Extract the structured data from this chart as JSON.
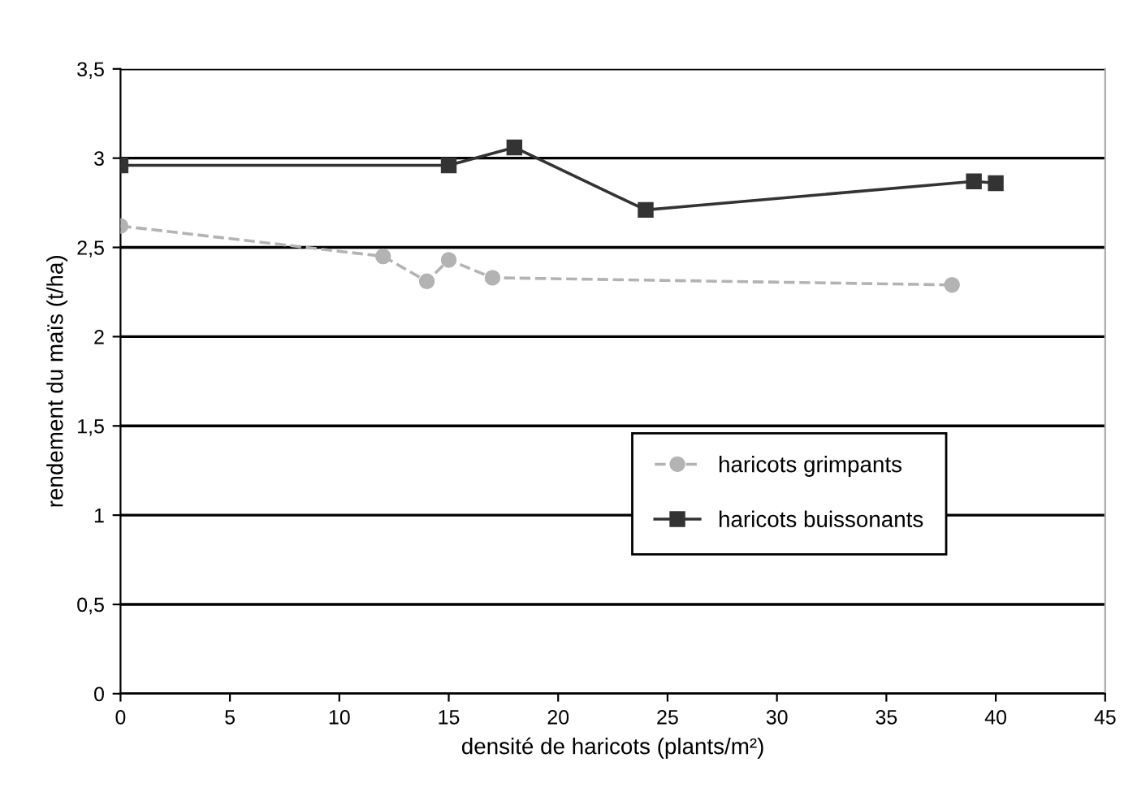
{
  "chart_data": {
    "type": "line",
    "xlabel": "densité de haricots (plants/m²)",
    "ylabel": "rendement du maïs (t/ha)",
    "xlim": [
      0,
      45
    ],
    "xticks": [
      0,
      5,
      10,
      15,
      20,
      25,
      30,
      35,
      40,
      45
    ],
    "ylim": [
      0,
      3.5
    ],
    "yticks": [
      0,
      {
        "value": 0.5,
        "label": "0,5"
      },
      1,
      {
        "value": 1.5,
        "label": "1,5"
      },
      2,
      {
        "value": 2.5,
        "label": "2,5"
      },
      3,
      {
        "value": 3.5,
        "label": "3,5"
      }
    ],
    "grid": "y",
    "legend": "right",
    "series": [
      {
        "name": "haricots grimpants",
        "color": "#b3b3b3",
        "marker": "circle",
        "line_style": "dashed",
        "x": [
          0,
          12,
          14,
          15,
          17,
          38
        ],
        "values": [
          2.62,
          2.45,
          2.31,
          2.43,
          2.33,
          2.29
        ]
      },
      {
        "name": "haricots buissonants",
        "color": "#333333",
        "marker": "square",
        "line_style": "solid",
        "x": [
          0,
          15,
          18,
          24,
          39,
          40
        ],
        "values": [
          2.96,
          2.96,
          3.06,
          2.71,
          2.87,
          2.86
        ]
      }
    ]
  }
}
